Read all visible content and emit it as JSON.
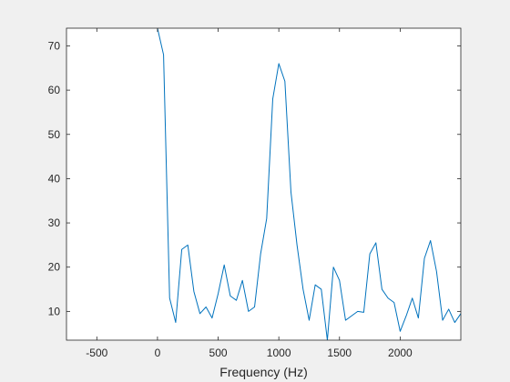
{
  "chart_data": {
    "type": "line",
    "title": "",
    "xlabel": "Frequency (Hz)",
    "ylabel": "",
    "xlim": [
      -750,
      2500
    ],
    "ylim": [
      3.5,
      74
    ],
    "xticks": [
      -500,
      0,
      500,
      1000,
      1500,
      2000
    ],
    "yticks": [
      10,
      20,
      30,
      40,
      50,
      60,
      70
    ],
    "xtick_labels": [
      "-500",
      "0",
      "500",
      "1000",
      "1500",
      "2000"
    ],
    "ytick_labels": [
      "10",
      "20",
      "30",
      "40",
      "50",
      "60",
      "70"
    ],
    "grid": false,
    "line_color": "#0072BD",
    "series": [
      {
        "x": [
          0,
          50,
          100,
          150,
          200,
          250,
          300,
          350,
          400,
          450,
          500,
          550,
          600,
          650,
          700,
          750,
          800,
          850,
          900,
          950,
          1000,
          1050,
          1100,
          1150,
          1200,
          1250,
          1300,
          1350,
          1400,
          1450,
          1500,
          1550,
          1600,
          1650,
          1700,
          1750,
          1800,
          1850,
          1900,
          1950,
          2000,
          2050,
          2100,
          2150,
          2200,
          2250,
          2300,
          2350,
          2400,
          2450,
          2500
        ],
        "y": [
          74,
          68,
          13,
          7.5,
          24,
          25,
          14.5,
          9.5,
          11,
          8.5,
          14,
          20.5,
          13.5,
          12.5,
          17,
          10,
          11,
          23,
          31,
          58,
          66,
          62,
          37,
          25,
          15,
          8,
          16,
          15,
          3.5,
          20,
          17,
          8,
          9,
          10,
          9.8,
          23,
          25.5,
          15,
          13,
          12,
          5.5,
          9,
          13,
          8.5,
          22,
          26,
          19,
          8,
          10.5,
          7.5,
          9.5
        ]
      }
    ]
  }
}
